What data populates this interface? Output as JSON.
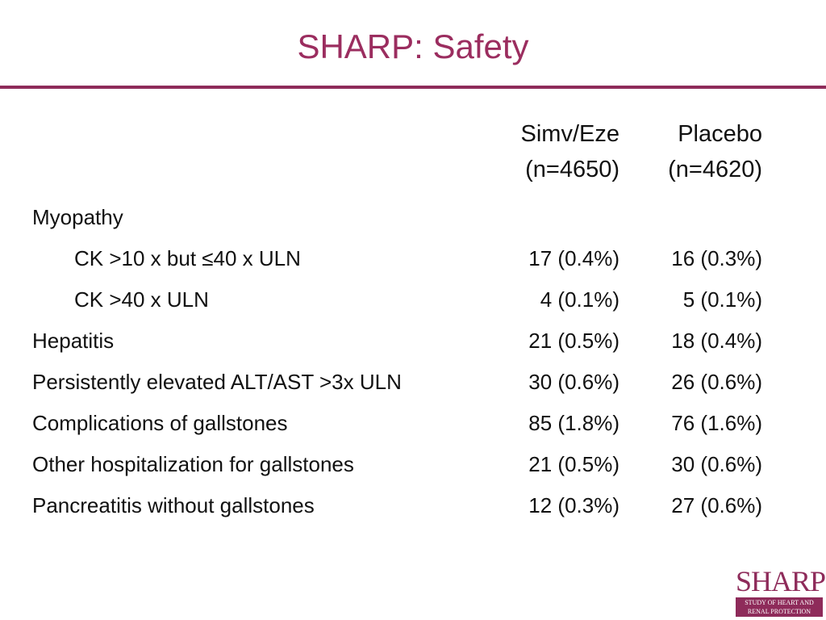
{
  "slide": {
    "title": "SHARP: Safety"
  },
  "table": {
    "columns": [
      {
        "line1": "Simv/Eze",
        "line2": "(n=4650)"
      },
      {
        "line1": "Placebo",
        "line2": "(n=4620)"
      }
    ],
    "rows": [
      {
        "label": "Myopathy",
        "v1": "",
        "v2": ""
      },
      {
        "label": "CK >10 x but ≤40 x ULN",
        "v1": "17 (0.4%)",
        "v2": "16 (0.3%)"
      },
      {
        "label": "CK >40 x ULN",
        "v1": "4 (0.1%)",
        "v2": "5 (0.1%)"
      },
      {
        "label": "Hepatitis",
        "v1": "21 (0.5%)",
        "v2": "18 (0.4%)"
      },
      {
        "label": "Persistently elevated ALT/AST >3x ULN",
        "v1": "30 (0.6%)",
        "v2": "26 (0.6%)"
      },
      {
        "label": "Complications of gallstones",
        "v1": "85 (1.8%)",
        "v2": "76 (1.6%)"
      },
      {
        "label": "Other hospitalization for gallstones",
        "v1": "21 (0.5%)",
        "v2": "30 (0.6%)"
      },
      {
        "label": "Pancreatitis without gallstones",
        "v1": "12 (0.3%)",
        "v2": "27 (0.6%)"
      }
    ]
  },
  "logo": {
    "word": "SHARP",
    "line1": "STUDY OF HEART AND",
    "line2": "RENAL PROTECTION"
  },
  "colors": {
    "accent": "#8e2b5a",
    "title": "#9b2d5f"
  }
}
